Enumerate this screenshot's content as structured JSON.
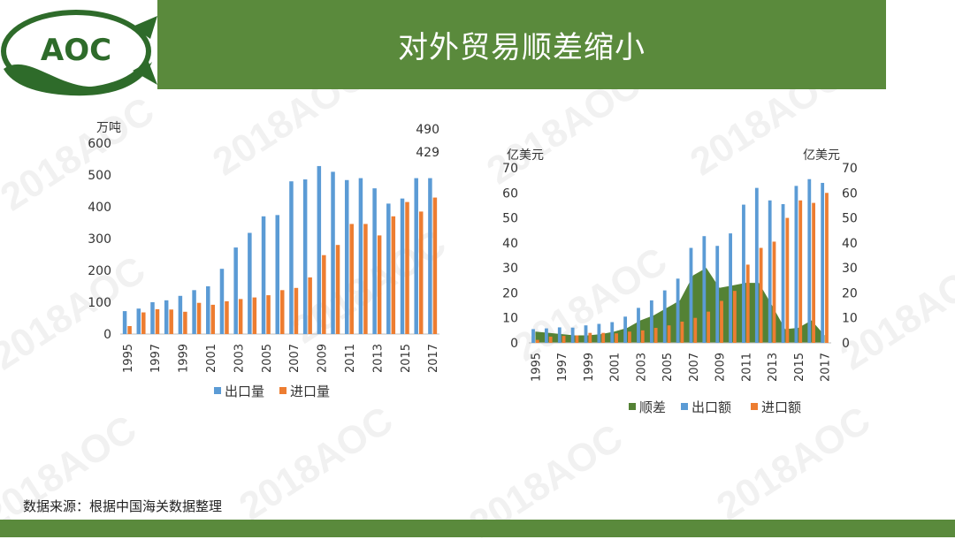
{
  "header": {
    "title": "对外贸易顺差缩小",
    "logo_text": "AOC"
  },
  "watermark": "2018AOC",
  "footer": {
    "source": "数据来源：根据中国海关数据整理"
  },
  "colors": {
    "brand_green": "#5a8a3c",
    "export_blue": "#5b9bd5",
    "import_orange": "#ed7d31",
    "surplus_green": "#548235"
  },
  "chart_data": [
    {
      "type": "bar",
      "unit_label": "万吨",
      "years": [
        "1995",
        "1996",
        "1997",
        "1998",
        "1999",
        "2000",
        "2001",
        "2002",
        "2003",
        "2004",
        "2005",
        "2006",
        "2007",
        "2008",
        "2009",
        "2010",
        "2011",
        "2012",
        "2013",
        "2014",
        "2015",
        "2016",
        "2017"
      ],
      "tick_labels": [
        "1995",
        "1997",
        "1999",
        "2001",
        "2003",
        "2005",
        "2007",
        "2009",
        "2011",
        "2013",
        "2015",
        "2017"
      ],
      "ylim": [
        0,
        600
      ],
      "yticks": [
        "0",
        "100",
        "200",
        "300",
        "400",
        "500",
        "600"
      ],
      "series": [
        {
          "name": "出口量",
          "values": [
            72,
            80,
            100,
            106,
            120,
            138,
            150,
            205,
            272,
            318,
            370,
            374,
            480,
            486,
            528,
            510,
            484,
            490,
            458,
            410,
            426,
            490,
            490
          ]
        },
        {
          "name": "进口量",
          "values": [
            25,
            68,
            78,
            77,
            70,
            98,
            92,
            103,
            110,
            115,
            122,
            138,
            145,
            178,
            248,
            280,
            346,
            346,
            310,
            370,
            415,
            385,
            429
          ]
        }
      ],
      "annotations": [
        "490",
        "429"
      ],
      "legend_position": "bottom"
    },
    {
      "type": "bar",
      "unit_label_left": "亿美元",
      "unit_label_right": "亿美元",
      "years": [
        "1995",
        "1996",
        "1997",
        "1998",
        "1999",
        "2000",
        "2001",
        "2002",
        "2003",
        "2004",
        "2005",
        "2006",
        "2007",
        "2008",
        "2009",
        "2010",
        "2011",
        "2012",
        "2013",
        "2014",
        "2015",
        "2016",
        "2017"
      ],
      "tick_labels": [
        "1995",
        "1997",
        "1999",
        "2001",
        "2003",
        "2005",
        "2007",
        "2009",
        "2011",
        "2013",
        "2015",
        "2017"
      ],
      "ylim": [
        0,
        70
      ],
      "yticks": [
        "0",
        "10",
        "20",
        "30",
        "40",
        "50",
        "60",
        "70"
      ],
      "series": [
        {
          "name": "顺差",
          "type": "area",
          "values": [
            4.5,
            4,
            3.5,
            3,
            3,
            3.5,
            4.5,
            6,
            9,
            11,
            14,
            17,
            27,
            30,
            22,
            23,
            24,
            24,
            15,
            5.5,
            6,
            9,
            3
          ]
        },
        {
          "name": "出口额",
          "values": [
            5.5,
            5.8,
            6.2,
            6.1,
            7,
            7.6,
            8.3,
            10.5,
            14,
            17,
            21,
            25.7,
            38,
            42.7,
            38.8,
            43.8,
            55.3,
            62,
            57,
            55.5,
            62.8,
            65.5,
            64
          ]
        },
        {
          "name": "进口额",
          "values": [
            1.2,
            2.5,
            2.8,
            3,
            4,
            4,
            3.8,
            4.5,
            5,
            6,
            7,
            8.5,
            10,
            12.5,
            16.8,
            20.8,
            31.3,
            38,
            40.5,
            50,
            57,
            56,
            60
          ]
        }
      ],
      "legend_position": "bottom"
    }
  ]
}
